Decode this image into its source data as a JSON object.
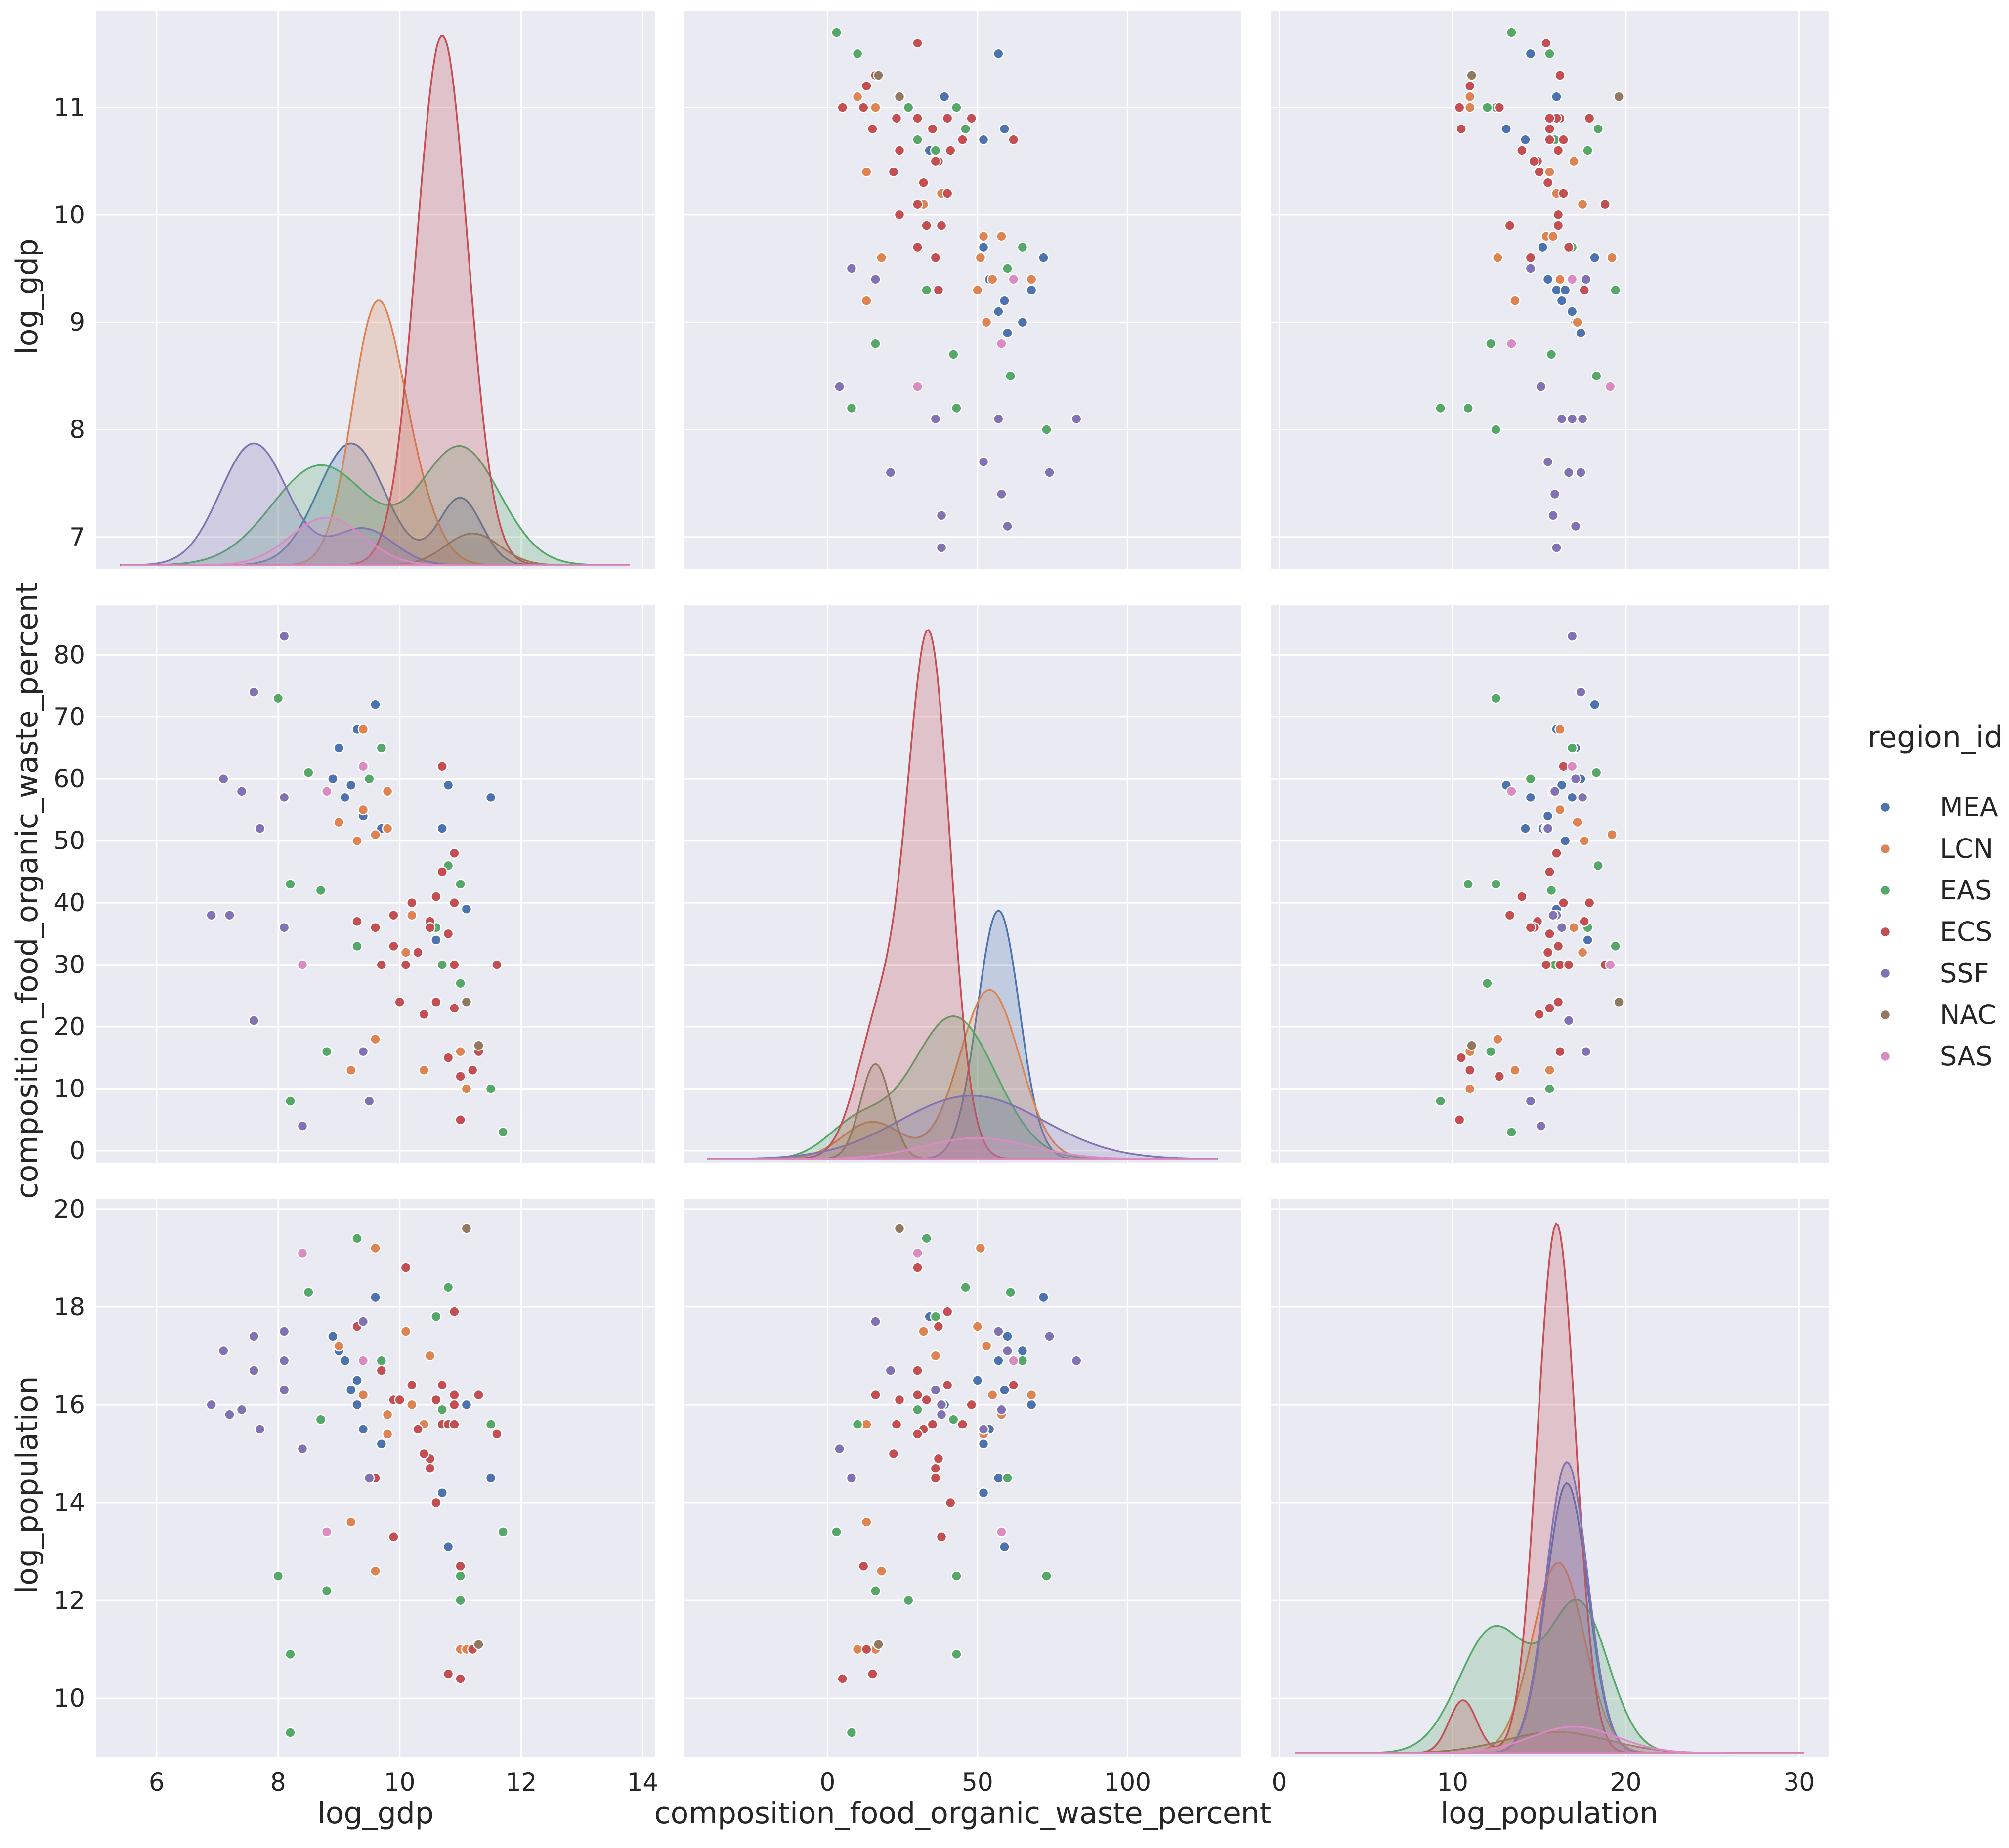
{
  "chart_data": {
    "type": "pairplot",
    "variables": [
      "log_gdp",
      "composition_food_organic_waste_percent",
      "log_population"
    ],
    "axes": {
      "log_gdp": {
        "label": "log_gdp",
        "range": [
          5,
          14.2
        ],
        "ticks": [
          6,
          8,
          10,
          12,
          14
        ],
        "diag_ticks": [
          7,
          8,
          9,
          10,
          11
        ],
        "diag_range": [
          6.7,
          11.9
        ]
      },
      "composition_food_organic_waste_percent": {
        "label": "composition_food_organic_waste_percent",
        "range": [
          -48,
          138
        ],
        "ticks": [
          0,
          50,
          100
        ],
        "row_range": [
          -2,
          88
        ],
        "row_ticks": [
          0,
          10,
          20,
          30,
          40,
          50,
          60,
          70,
          80
        ]
      },
      "log_population": {
        "label": "log_population",
        "range": [
          -0.5,
          31.7
        ],
        "ticks": [
          0,
          10,
          20,
          30
        ],
        "row_range": [
          8.8,
          20.2
        ],
        "row_ticks": [
          10,
          12,
          14,
          16,
          18,
          20
        ]
      }
    },
    "legend": {
      "title": "region_id",
      "placement": "right",
      "entries": [
        {
          "name": "MEA",
          "color": "#4c72b0"
        },
        {
          "name": "LCN",
          "color": "#dd8452"
        },
        {
          "name": "EAS",
          "color": "#55a868"
        },
        {
          "name": "ECS",
          "color": "#c44e52"
        },
        {
          "name": "SSF",
          "color": "#8172b3"
        },
        {
          "name": "NAC",
          "color": "#937860"
        },
        {
          "name": "SAS",
          "color": "#da8bc3"
        }
      ]
    },
    "points": [
      {
        "region": "MEA",
        "gdp": 11.5,
        "food": 57,
        "pop": 14.5
      },
      {
        "region": "MEA",
        "gdp": 10.6,
        "food": 34,
        "pop": 17.8
      },
      {
        "region": "MEA",
        "gdp": 10.8,
        "food": 59,
        "pop": 13.1
      },
      {
        "region": "MEA",
        "gdp": 11.1,
        "food": 39,
        "pop": 16.0
      },
      {
        "region": "MEA",
        "gdp": 10.7,
        "food": 52,
        "pop": 14.2
      },
      {
        "region": "MEA",
        "gdp": 9.6,
        "food": 72,
        "pop": 18.2
      },
      {
        "region": "MEA",
        "gdp": 9.3,
        "food": 68,
        "pop": 16.0
      },
      {
        "region": "MEA",
        "gdp": 9.0,
        "food": 65,
        "pop": 17.1
      },
      {
        "region": "MEA",
        "gdp": 9.4,
        "food": 54,
        "pop": 15.5
      },
      {
        "region": "MEA",
        "gdp": 9.2,
        "food": 59,
        "pop": 16.3
      },
      {
        "region": "MEA",
        "gdp": 9.7,
        "food": 52,
        "pop": 15.2
      },
      {
        "region": "MEA",
        "gdp": 8.9,
        "food": 60,
        "pop": 17.4
      },
      {
        "region": "MEA",
        "gdp": 9.3,
        "food": 50,
        "pop": 16.5
      },
      {
        "region": "MEA",
        "gdp": 9.1,
        "food": 57,
        "pop": 16.9
      },
      {
        "region": "LCN",
        "gdp": 10.4,
        "food": 13,
        "pop": 15.6
      },
      {
        "region": "LCN",
        "gdp": 11.0,
        "food": 16,
        "pop": 11.0
      },
      {
        "region": "LCN",
        "gdp": 9.6,
        "food": 18,
        "pop": 12.6
      },
      {
        "region": "LCN",
        "gdp": 11.1,
        "food": 10,
        "pop": 11.0
      },
      {
        "region": "LCN",
        "gdp": 10.2,
        "food": 38,
        "pop": 16.0
      },
      {
        "region": "LCN",
        "gdp": 9.8,
        "food": 52,
        "pop": 15.4
      },
      {
        "region": "LCN",
        "gdp": 9.4,
        "food": 55,
        "pop": 16.2
      },
      {
        "region": "LCN",
        "gdp": 9.6,
        "food": 51,
        "pop": 19.2
      },
      {
        "region": "LCN",
        "gdp": 9.0,
        "food": 53,
        "pop": 17.2
      },
      {
        "region": "LCN",
        "gdp": 9.3,
        "food": 50,
        "pop": 17.6
      },
      {
        "region": "LCN",
        "gdp": 9.4,
        "food": 68,
        "pop": 16.2
      },
      {
        "region": "LCN",
        "gdp": 9.8,
        "food": 58,
        "pop": 15.8
      },
      {
        "region": "LCN",
        "gdp": 9.2,
        "food": 13,
        "pop": 13.6
      },
      {
        "region": "LCN",
        "gdp": 10.5,
        "food": 36,
        "pop": 17.0
      },
      {
        "region": "LCN",
        "gdp": 10.1,
        "food": 32,
        "pop": 17.5
      },
      {
        "region": "EAS",
        "gdp": 11.7,
        "food": 3,
        "pop": 13.4
      },
      {
        "region": "EAS",
        "gdp": 11.5,
        "food": 10,
        "pop": 15.6
      },
      {
        "region": "EAS",
        "gdp": 11.0,
        "food": 43,
        "pop": 12.5
      },
      {
        "region": "EAS",
        "gdp": 10.6,
        "food": 36,
        "pop": 17.8
      },
      {
        "region": "EAS",
        "gdp": 10.8,
        "food": 46,
        "pop": 18.4
      },
      {
        "region": "EAS",
        "gdp": 10.7,
        "food": 30,
        "pop": 15.9
      },
      {
        "region": "EAS",
        "gdp": 9.5,
        "food": 60,
        "pop": 14.5
      },
      {
        "region": "EAS",
        "gdp": 9.7,
        "food": 65,
        "pop": 16.9
      },
      {
        "region": "EAS",
        "gdp": 9.3,
        "food": 33,
        "pop": 19.4
      },
      {
        "region": "EAS",
        "gdp": 8.8,
        "food": 16,
        "pop": 12.2
      },
      {
        "region": "EAS",
        "gdp": 8.2,
        "food": 43,
        "pop": 10.9
      },
      {
        "region": "EAS",
        "gdp": 8.2,
        "food": 8,
        "pop": 9.3
      },
      {
        "region": "EAS",
        "gdp": 8.0,
        "food": 73,
        "pop": 12.5
      },
      {
        "region": "EAS",
        "gdp": 8.7,
        "food": 42,
        "pop": 15.7
      },
      {
        "region": "EAS",
        "gdp": 8.5,
        "food": 61,
        "pop": 18.3
      },
      {
        "region": "EAS",
        "gdp": 11.0,
        "food": 27,
        "pop": 12.0
      },
      {
        "region": "ECS",
        "gdp": 10.9,
        "food": 30,
        "pop": 16.2
      },
      {
        "region": "ECS",
        "gdp": 10.3,
        "food": 32,
        "pop": 15.5
      },
      {
        "region": "ECS",
        "gdp": 10.5,
        "food": 37,
        "pop": 14.9
      },
      {
        "region": "ECS",
        "gdp": 10.7,
        "food": 62,
        "pop": 16.4
      },
      {
        "region": "ECS",
        "gdp": 10.4,
        "food": 22,
        "pop": 15.0
      },
      {
        "region": "ECS",
        "gdp": 11.0,
        "food": 12,
        "pop": 12.7
      },
      {
        "region": "ECS",
        "gdp": 11.2,
        "food": 13,
        "pop": 11.0
      },
      {
        "region": "ECS",
        "gdp": 10.8,
        "food": 15,
        "pop": 10.5
      },
      {
        "region": "ECS",
        "gdp": 11.0,
        "food": 5,
        "pop": 10.4
      },
      {
        "region": "ECS",
        "gdp": 10.9,
        "food": 40,
        "pop": 17.9
      },
      {
        "region": "ECS",
        "gdp": 10.1,
        "food": 30,
        "pop": 18.8
      },
      {
        "region": "ECS",
        "gdp": 9.9,
        "food": 33,
        "pop": 16.1
      },
      {
        "region": "ECS",
        "gdp": 9.7,
        "food": 30,
        "pop": 16.7
      },
      {
        "region": "ECS",
        "gdp": 10.6,
        "food": 41,
        "pop": 14.0
      },
      {
        "region": "ECS",
        "gdp": 10.9,
        "food": 48,
        "pop": 16.0
      },
      {
        "region": "ECS",
        "gdp": 10.2,
        "food": 40,
        "pop": 16.4
      },
      {
        "region": "ECS",
        "gdp": 11.6,
        "food": 30,
        "pop": 15.4
      },
      {
        "region": "ECS",
        "gdp": 10.5,
        "food": 36,
        "pop": 14.7
      },
      {
        "region": "ECS",
        "gdp": 10.6,
        "food": 24,
        "pop": 16.1
      },
      {
        "region": "ECS",
        "gdp": 10.7,
        "food": 45,
        "pop": 15.6
      },
      {
        "region": "ECS",
        "gdp": 9.3,
        "food": 37,
        "pop": 17.6
      },
      {
        "region": "ECS",
        "gdp": 10.8,
        "food": 35,
        "pop": 15.6
      },
      {
        "region": "ECS",
        "gdp": 11.3,
        "food": 16,
        "pop": 16.2
      },
      {
        "region": "ECS",
        "gdp": 10.0,
        "food": 24,
        "pop": 16.1
      },
      {
        "region": "ECS",
        "gdp": 9.6,
        "food": 36,
        "pop": 14.5
      },
      {
        "region": "ECS",
        "gdp": 10.9,
        "food": 23,
        "pop": 15.6
      },
      {
        "region": "ECS",
        "gdp": 9.9,
        "food": 38,
        "pop": 13.3
      },
      {
        "region": "SSF",
        "gdp": 6.9,
        "food": 38,
        "pop": 16.0
      },
      {
        "region": "SSF",
        "gdp": 7.2,
        "food": 38,
        "pop": 15.8
      },
      {
        "region": "SSF",
        "gdp": 7.1,
        "food": 60,
        "pop": 17.1
      },
      {
        "region": "SSF",
        "gdp": 7.4,
        "food": 58,
        "pop": 15.9
      },
      {
        "region": "SSF",
        "gdp": 7.6,
        "food": 74,
        "pop": 17.4
      },
      {
        "region": "SSF",
        "gdp": 7.6,
        "food": 21,
        "pop": 16.7
      },
      {
        "region": "SSF",
        "gdp": 7.7,
        "food": 52,
        "pop": 15.5
      },
      {
        "region": "SSF",
        "gdp": 8.1,
        "food": 83,
        "pop": 16.9
      },
      {
        "region": "SSF",
        "gdp": 8.1,
        "food": 57,
        "pop": 17.5
      },
      {
        "region": "SSF",
        "gdp": 8.1,
        "food": 36,
        "pop": 16.3
      },
      {
        "region": "SSF",
        "gdp": 8.4,
        "food": 4,
        "pop": 15.1
      },
      {
        "region": "SSF",
        "gdp": 9.4,
        "food": 16,
        "pop": 17.7
      },
      {
        "region": "SSF",
        "gdp": 9.5,
        "food": 8,
        "pop": 14.5
      },
      {
        "region": "NAC",
        "gdp": 11.1,
        "food": 24,
        "pop": 19.6
      },
      {
        "region": "NAC",
        "gdp": 11.3,
        "food": 17,
        "pop": 11.1
      },
      {
        "region": "SAS",
        "gdp": 9.4,
        "food": 62,
        "pop": 16.9
      },
      {
        "region": "SAS",
        "gdp": 8.4,
        "food": 30,
        "pop": 19.1
      },
      {
        "region": "SAS",
        "gdp": 8.8,
        "food": 58,
        "pop": 13.4
      }
    ],
    "kde": {
      "log_gdp": [
        {
          "region": "MEA",
          "height": 0.46,
          "peaks": [
            [
              9.2,
              0.55,
              1.0
            ],
            [
              11.0,
              0.35,
              0.55
            ]
          ]
        },
        {
          "region": "LCN",
          "height": 1.0,
          "peaks": [
            [
              9.6,
              0.4,
              1.0
            ],
            [
              10.2,
              0.4,
              0.25
            ]
          ]
        },
        {
          "region": "EAS",
          "height": 0.45,
          "peaks": [
            [
              8.7,
              0.8,
              0.85
            ],
            [
              11.0,
              0.65,
              1.0
            ]
          ]
        },
        {
          "region": "ECS",
          "height": 2.0,
          "peaks": [
            [
              10.7,
              0.42,
              1.0
            ]
          ]
        },
        {
          "region": "SSF",
          "height": 0.46,
          "peaks": [
            [
              7.6,
              0.55,
              1.0
            ],
            [
              9.4,
              0.5,
              0.3
            ]
          ]
        },
        {
          "region": "NAC",
          "height": 0.12,
          "peaks": [
            [
              11.2,
              0.45,
              1.0
            ]
          ]
        },
        {
          "region": "SAS",
          "height": 0.18,
          "peaks": [
            [
              8.8,
              0.6,
              1.0
            ]
          ]
        }
      ],
      "composition_food_organic_waste_percent": [
        {
          "region": "MEA",
          "height": 0.47,
          "peaks": [
            [
              57,
              7,
              1.0
            ]
          ]
        },
        {
          "region": "LCN",
          "height": 0.32,
          "peaks": [
            [
              54,
              10,
              1.0
            ],
            [
              15,
              10,
              0.22
            ]
          ]
        },
        {
          "region": "EAS",
          "height": 0.27,
          "peaks": [
            [
              42,
              14,
              1.0
            ],
            [
              10,
              10,
              0.25
            ]
          ]
        },
        {
          "region": "ECS",
          "height": 1.0,
          "peaks": [
            [
              34,
              7,
              1.0
            ],
            [
              18,
              8,
              0.28
            ]
          ]
        },
        {
          "region": "SSF",
          "height": 0.12,
          "peaks": [
            [
              48,
              24,
              1.0
            ]
          ]
        },
        {
          "region": "NAC",
          "height": 0.18,
          "peaks": [
            [
              16,
              5,
              1.0
            ]
          ]
        },
        {
          "region": "SAS",
          "height": 0.04,
          "peaks": [
            [
              50,
              18,
              1.0
            ]
          ]
        }
      ],
      "log_population": [
        {
          "region": "MEA",
          "height": 0.51,
          "peaks": [
            [
              16.6,
              1.2,
              1.0
            ]
          ]
        },
        {
          "region": "LCN",
          "height": 0.36,
          "peaks": [
            [
              16.1,
              1.5,
              1.0
            ]
          ]
        },
        {
          "region": "EAS",
          "height": 0.29,
          "peaks": [
            [
              12.4,
              2.0,
              0.85
            ],
            [
              17.3,
              1.7,
              1.0
            ]
          ]
        },
        {
          "region": "ECS",
          "height": 1.0,
          "peaks": [
            [
              16.0,
              1.1,
              1.0
            ],
            [
              10.6,
              0.8,
              0.1
            ]
          ]
        },
        {
          "region": "SSF",
          "height": 0.55,
          "peaks": [
            [
              16.6,
              1.2,
              1.0
            ]
          ]
        },
        {
          "region": "NAC",
          "height": 0.04,
          "peaks": [
            [
              16,
              3.0,
              1.0
            ]
          ]
        },
        {
          "region": "SAS",
          "height": 0.05,
          "peaks": [
            [
              17,
              2.5,
              1.0
            ]
          ]
        }
      ]
    }
  }
}
